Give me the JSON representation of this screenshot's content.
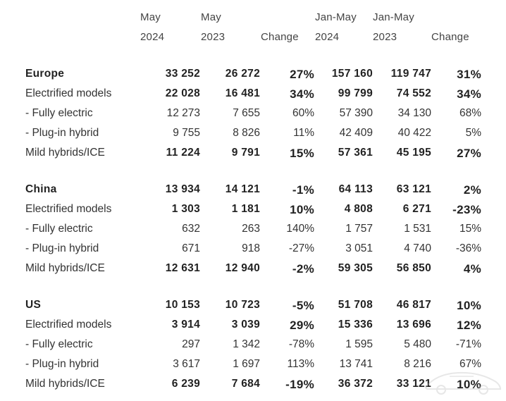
{
  "header": {
    "col1_line1": "May",
    "col1_line2": "2024",
    "col2_line1": "May",
    "col2_line2": "2023",
    "col3_line2": "Change",
    "col4_line1": "Jan-May",
    "col4_line2": "2024",
    "col5_line1": "Jan-May",
    "col5_line2": "2023",
    "col6_line2": "Change"
  },
  "rows": [
    {
      "label": "Europe",
      "v1": "33 252",
      "v2": "26 272",
      "ch": "27%",
      "v4": "157 160",
      "v5": "119 747",
      "ch2": "31%"
    },
    {
      "label": "Electrified models",
      "v1": "22 028",
      "v2": "16 481",
      "ch": "34%",
      "v4": "99 799",
      "v5": "74 552",
      "ch2": "34%"
    },
    {
      "label": " - Fully electric",
      "v1": "12 273",
      "v2": "7 655",
      "ch": "60%",
      "v4": "57 390",
      "v5": "34 130",
      "ch2": "68%"
    },
    {
      "label": " - Plug-in hybrid",
      "v1": "9 755",
      "v2": "8 826",
      "ch": "11%",
      "v4": "42 409",
      "v5": "40 422",
      "ch2": "5%"
    },
    {
      "label": "Mild hybrids/ICE",
      "v1": "11 224",
      "v2": "9 791",
      "ch": "15%",
      "v4": "57 361",
      "v5": "45 195",
      "ch2": "27%"
    },
    {
      "label": "China",
      "v1": "13 934",
      "v2": "14 121",
      "ch": "-1%",
      "v4": "64 113",
      "v5": "63 121",
      "ch2": "2%"
    },
    {
      "label": "Electrified models",
      "v1": "1 303",
      "v2": "1 181",
      "ch": "10%",
      "v4": "4 808",
      "v5": "6 271",
      "ch2": "-23%"
    },
    {
      "label": " - Fully electric",
      "v1": "632",
      "v2": "263",
      "ch": "140%",
      "v4": "1 757",
      "v5": "1 531",
      "ch2": "15%"
    },
    {
      "label": " - Plug-in hybrid",
      "v1": "671",
      "v2": "918",
      "ch": "-27%",
      "v4": "3 051",
      "v5": "4 740",
      "ch2": "-36%"
    },
    {
      "label": "Mild hybrids/ICE",
      "v1": "12 631",
      "v2": "12 940",
      "ch": "-2%",
      "v4": "59 305",
      "v5": "56 850",
      "ch2": "4%"
    },
    {
      "label": "US",
      "v1": "10 153",
      "v2": "10 723",
      "ch": "-5%",
      "v4": "51 708",
      "v5": "46 817",
      "ch2": "10%"
    },
    {
      "label": "Electrified models",
      "v1": "3 914",
      "v2": "3 039",
      "ch": "29%",
      "v4": "15 336",
      "v5": "13 696",
      "ch2": "12%"
    },
    {
      "label": " - Fully electric",
      "v1": "297",
      "v2": "1 342",
      "ch": "-78%",
      "v4": "1 595",
      "v5": "5 480",
      "ch2": "-71%"
    },
    {
      "label": " - Plug-in hybrid",
      "v1": "3 617",
      "v2": "1 697",
      "ch": "113%",
      "v4": "13 741",
      "v5": "8 216",
      "ch2": "67%"
    },
    {
      "label": "Mild hybrids/ICE",
      "v1": "6 239",
      "v2": "7 684",
      "ch": "-19%",
      "v4": "36 372",
      "v5": "33 121",
      "ch2": "10%"
    }
  ]
}
